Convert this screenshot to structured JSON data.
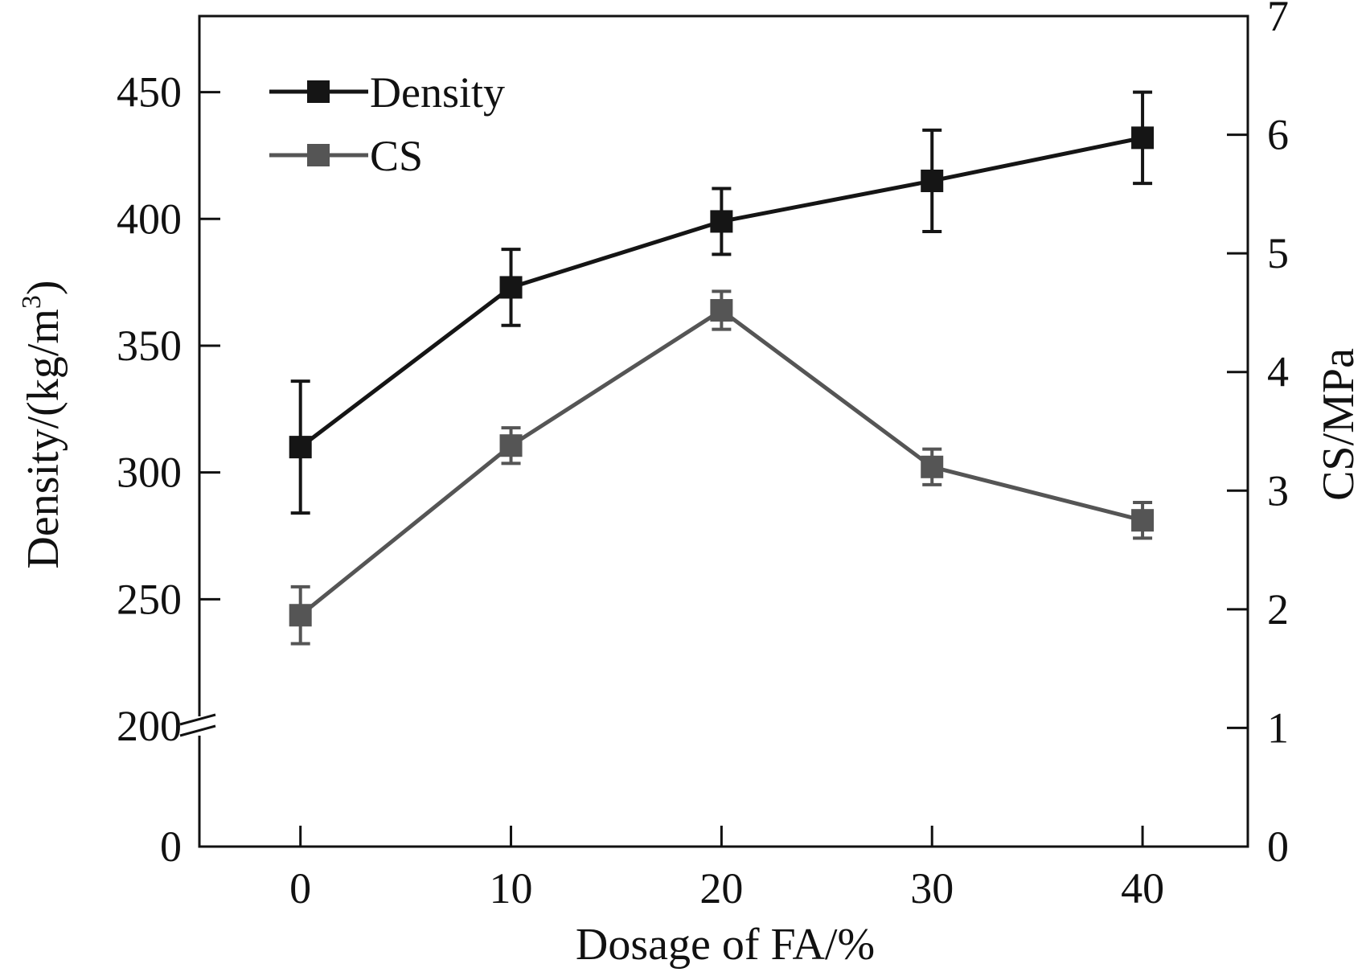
{
  "chart_data": {
    "type": "line",
    "x": [
      0,
      10,
      20,
      30,
      40
    ],
    "xlabel": "Dosage of FA/%",
    "ylabel": "Density/(kg/m",
    "ylabel_sup": "3",
    "ylabel_close": ")",
    "y2label": "CS/MPa",
    "xlim": [
      -4.8,
      45
    ],
    "ylim_broken": {
      "lower": [
        0,
        200
      ],
      "upper": [
        200,
        480
      ]
    },
    "y2lim": [
      0,
      7
    ],
    "x_ticks": [
      0,
      10,
      20,
      30,
      40
    ],
    "x_tick_labels": [
      "0",
      "10",
      "20",
      "30",
      "40"
    ],
    "y_ticks": [
      0,
      200,
      250,
      300,
      350,
      400,
      450
    ],
    "y_tick_labels": [
      "0",
      "200",
      "250",
      "300",
      "350",
      "400",
      "450"
    ],
    "y2_ticks": [
      0,
      1,
      2,
      3,
      4,
      5,
      6,
      7
    ],
    "y2_tick_labels": [
      "0",
      "1",
      "2",
      "3",
      "4",
      "5",
      "6",
      "7"
    ],
    "grid": false,
    "legend_position": "top-left",
    "series": [
      {
        "name": "Density",
        "axis": "left",
        "color": "#151515",
        "values": [
          310,
          373,
          399,
          415,
          432
        ],
        "errors": [
          26,
          15,
          13,
          20,
          18
        ]
      },
      {
        "name": "CS",
        "axis": "right",
        "color": "#555555",
        "values": [
          1.95,
          3.38,
          4.52,
          3.2,
          2.75
        ],
        "errors": [
          0.24,
          0.15,
          0.16,
          0.15,
          0.15
        ]
      }
    ]
  }
}
